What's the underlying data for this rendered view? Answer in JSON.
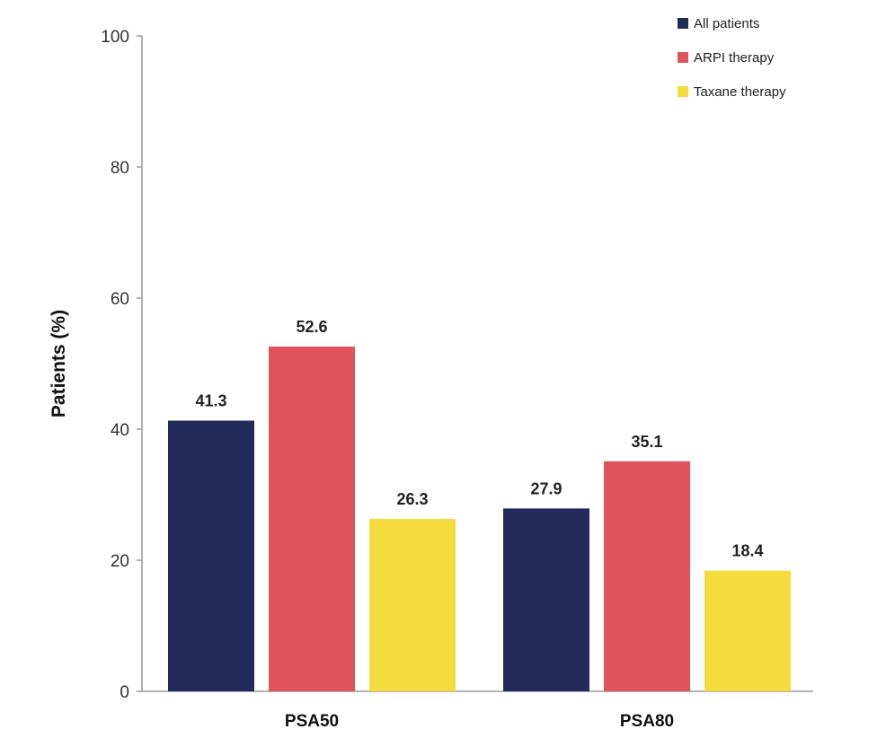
{
  "chart_data": {
    "type": "bar",
    "title": "",
    "xlabel": "",
    "ylabel": "Patients (%)",
    "ylim": [
      0,
      100
    ],
    "yticks": [
      0,
      20,
      40,
      60,
      80,
      100
    ],
    "categories": [
      "PSA50",
      "PSA80"
    ],
    "series": [
      {
        "name": "All patients",
        "color": "#222a5a",
        "values": [
          41.3,
          27.9
        ]
      },
      {
        "name": "ARPI therapy",
        "color": "#e0525c",
        "values": [
          52.6,
          35.1
        ]
      },
      {
        "name": "Taxane therapy",
        "color": "#f5dc3c",
        "values": [
          26.3,
          18.4
        ]
      }
    ],
    "grid": false,
    "legend_position": "top-right"
  }
}
